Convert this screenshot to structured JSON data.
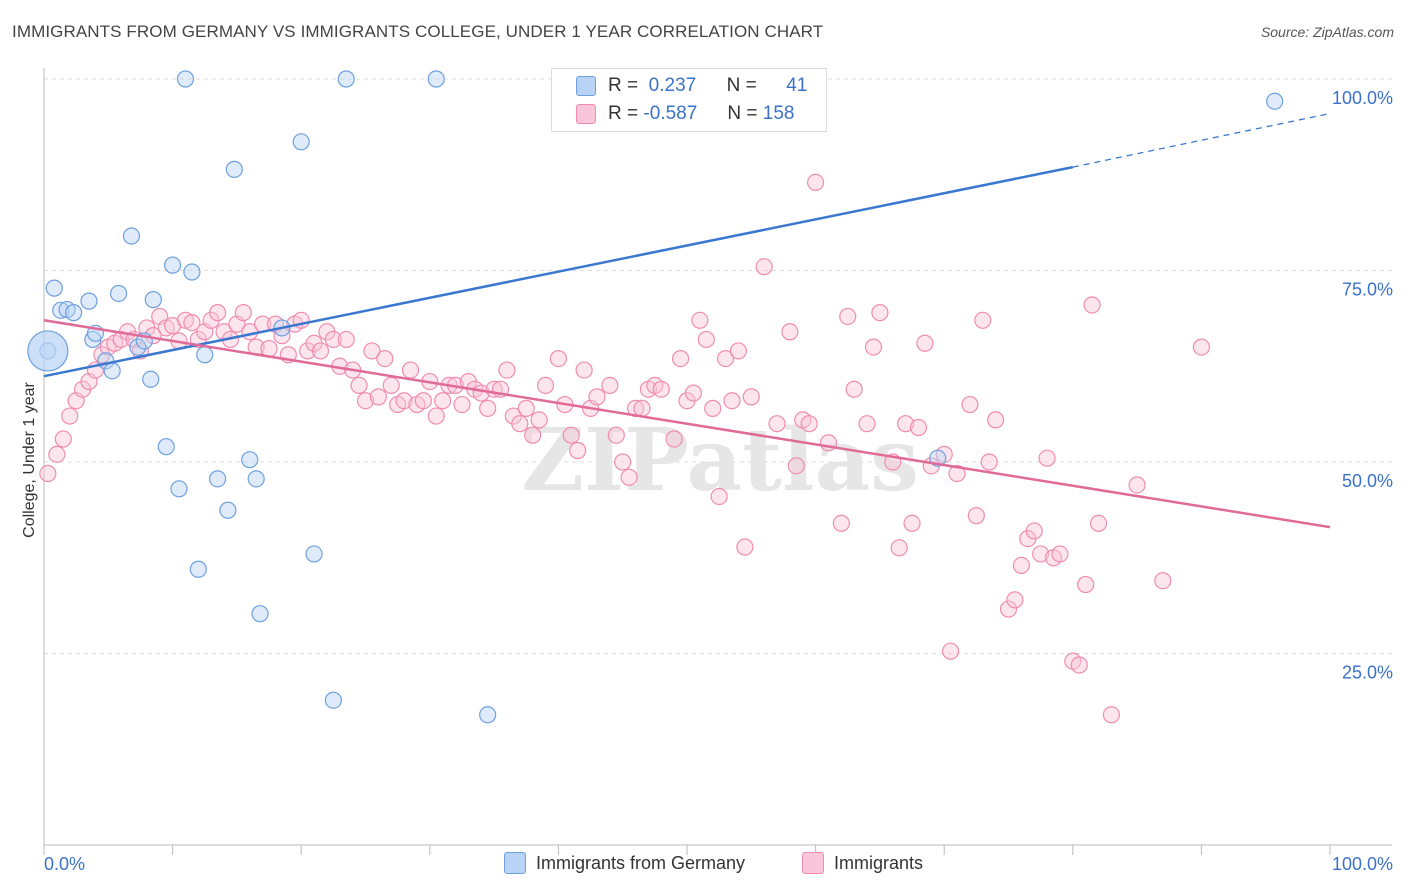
{
  "title": "IMMIGRANTS FROM GERMANY VS IMMIGRANTS COLLEGE, UNDER 1 YEAR CORRELATION CHART",
  "source": "Source: ZipAtlas.com",
  "watermark": "ZIPatlas",
  "legend": {
    "rows": [
      {
        "r_label": "R =",
        "r_value": "0.237",
        "n_label": "N =",
        "n_value": "41"
      },
      {
        "r_label": "R =",
        "r_value": "-0.587",
        "n_label": "N =",
        "n_value": "158"
      }
    ]
  },
  "chart_data": {
    "type": "scatter",
    "title": "IMMIGRANTS FROM GERMANY VS IMMIGRANTS COLLEGE, UNDER 1 YEAR CORRELATION CHART",
    "xlabel": "",
    "ylabel": "College, Under 1 year",
    "x_ticks": [
      "0.0%",
      "100.0%"
    ],
    "y_ticks": [
      "25.0%",
      "50.0%",
      "75.0%",
      "100.0%"
    ],
    "xlim": [
      0,
      100
    ],
    "ylim": [
      0,
      100
    ],
    "colors": {
      "blue": "#6ea0e0",
      "blue_fill": "#b9d3f5",
      "pink": "#f08cb0",
      "pink_fill": "#f8c6d8",
      "blue_line": "#3a78d0",
      "pink_line": "#e06a98",
      "tick_label": "#3a72c8"
    },
    "series": [
      {
        "name": "Immigrants from Germany",
        "r": 0.237,
        "n": 41,
        "trend": {
          "x0": 0,
          "y0": 61.2,
          "x1": 80,
          "y1": 88.5,
          "dash_x1": 100,
          "dash_y1": 95.5
        },
        "points": [
          [
            0.3,
            64.5
          ],
          [
            0.8,
            72.7
          ],
          [
            1.3,
            69.8
          ],
          [
            1.8,
            69.9
          ],
          [
            2.3,
            69.5
          ],
          [
            3.5,
            71
          ],
          [
            3.8,
            66
          ],
          [
            4,
            66.8
          ],
          [
            4.8,
            63.2
          ],
          [
            5.3,
            61.9
          ],
          [
            5.8,
            72
          ],
          [
            6.8,
            79.5
          ],
          [
            7.3,
            65
          ],
          [
            7.8,
            65.8
          ],
          [
            8.3,
            60.8
          ],
          [
            8.5,
            71.2
          ],
          [
            9.5,
            52
          ],
          [
            10,
            75.7
          ],
          [
            10.5,
            46.5
          ],
          [
            11,
            100
          ],
          [
            11.5,
            74.8
          ],
          [
            12,
            36
          ],
          [
            12.5,
            64
          ],
          [
            13.5,
            47.8
          ],
          [
            14.3,
            43.7
          ],
          [
            14.8,
            88.2
          ],
          [
            16,
            50.3
          ],
          [
            16.5,
            47.8
          ],
          [
            16.8,
            30.2
          ],
          [
            18.5,
            67.5
          ],
          [
            20,
            91.8
          ],
          [
            21,
            38
          ],
          [
            22.5,
            18.9
          ],
          [
            23.5,
            100
          ],
          [
            30.5,
            100
          ],
          [
            34.5,
            17
          ],
          [
            69.5,
            50.5
          ],
          [
            95.7,
            97.1
          ]
        ]
      },
      {
        "name": "Immigrants",
        "r": -0.587,
        "n": 158,
        "trend": {
          "x0": 0,
          "y0": 68.5,
          "x1": 100,
          "y1": 41.5
        },
        "points": [
          [
            0.3,
            48.5
          ],
          [
            1,
            51
          ],
          [
            1.5,
            53
          ],
          [
            2,
            56
          ],
          [
            2.5,
            58
          ],
          [
            3,
            59.5
          ],
          [
            3.5,
            60.5
          ],
          [
            4,
            62
          ],
          [
            4.5,
            64
          ],
          [
            5,
            65
          ],
          [
            5.5,
            65.5
          ],
          [
            6,
            66
          ],
          [
            6.5,
            67
          ],
          [
            7,
            66
          ],
          [
            7.5,
            64.5
          ],
          [
            8,
            67.5
          ],
          [
            8.5,
            66.5
          ],
          [
            9,
            69
          ],
          [
            9.5,
            67.5
          ],
          [
            10,
            67.8
          ],
          [
            10.5,
            65.8
          ],
          [
            11,
            68.5
          ],
          [
            11.5,
            68.2
          ],
          [
            12,
            66
          ],
          [
            12.5,
            67
          ],
          [
            13,
            68.5
          ],
          [
            13.5,
            69.5
          ],
          [
            14,
            67
          ],
          [
            14.5,
            66
          ],
          [
            15,
            68
          ],
          [
            15.5,
            69.5
          ],
          [
            16,
            67
          ],
          [
            16.5,
            65
          ],
          [
            17,
            68
          ],
          [
            17.5,
            64.8
          ],
          [
            18,
            68
          ],
          [
            18.5,
            66.5
          ],
          [
            19,
            64
          ],
          [
            19.5,
            68
          ],
          [
            20,
            68.5
          ],
          [
            20.5,
            64.5
          ],
          [
            21,
            65.5
          ],
          [
            21.5,
            64.5
          ],
          [
            22,
            67
          ],
          [
            22.5,
            66
          ],
          [
            23,
            62.5
          ],
          [
            23.5,
            66
          ],
          [
            24,
            62
          ],
          [
            24.5,
            60
          ],
          [
            25,
            58
          ],
          [
            25.5,
            64.5
          ],
          [
            26,
            58.5
          ],
          [
            26.5,
            63.5
          ],
          [
            27,
            60
          ],
          [
            27.5,
            57.5
          ],
          [
            28,
            58
          ],
          [
            28.5,
            62
          ],
          [
            29,
            57.5
          ],
          [
            29.5,
            58
          ],
          [
            30,
            60.5
          ],
          [
            30.5,
            56
          ],
          [
            31,
            58
          ],
          [
            31.5,
            60
          ],
          [
            32,
            60
          ],
          [
            32.5,
            57.5
          ],
          [
            33,
            60.5
          ],
          [
            33.5,
            59.5
          ],
          [
            34,
            59
          ],
          [
            34.5,
            57
          ],
          [
            35,
            59.5
          ],
          [
            35.5,
            59.5
          ],
          [
            36,
            62
          ],
          [
            36.5,
            56
          ],
          [
            37,
            55
          ],
          [
            37.5,
            57
          ],
          [
            38,
            53.5
          ],
          [
            38.5,
            55.5
          ],
          [
            39,
            60
          ],
          [
            40,
            63.5
          ],
          [
            40.5,
            57.5
          ],
          [
            41,
            53.5
          ],
          [
            41.5,
            51.5
          ],
          [
            42,
            62
          ],
          [
            42.5,
            57
          ],
          [
            43,
            58.5
          ],
          [
            44,
            60
          ],
          [
            44.5,
            53.5
          ],
          [
            45,
            50
          ],
          [
            45.5,
            48
          ],
          [
            46,
            57
          ],
          [
            46.5,
            57
          ],
          [
            47,
            59.5
          ],
          [
            47.5,
            60
          ],
          [
            48,
            59.5
          ],
          [
            49,
            53
          ],
          [
            49.5,
            63.5
          ],
          [
            50,
            58
          ],
          [
            50.5,
            59
          ],
          [
            51,
            68.5
          ],
          [
            51.5,
            66
          ],
          [
            52,
            57
          ],
          [
            52.5,
            45.5
          ],
          [
            53,
            63.5
          ],
          [
            53.5,
            58
          ],
          [
            54,
            64.5
          ],
          [
            54.5,
            38.9
          ],
          [
            55,
            58.5
          ],
          [
            56,
            75.5
          ],
          [
            57,
            55
          ],
          [
            58,
            67
          ],
          [
            58.5,
            49.5
          ],
          [
            59,
            55.5
          ],
          [
            59.5,
            55
          ],
          [
            60,
            86.5
          ],
          [
            61,
            52.5
          ],
          [
            62,
            42
          ],
          [
            62.5,
            69
          ],
          [
            63,
            59.5
          ],
          [
            64,
            55
          ],
          [
            64.5,
            65
          ],
          [
            65,
            69.5
          ],
          [
            66,
            50
          ],
          [
            66.5,
            38.8
          ],
          [
            67,
            55
          ],
          [
            67.5,
            42
          ],
          [
            68,
            54.5
          ],
          [
            68.5,
            65.5
          ],
          [
            69,
            49.5
          ],
          [
            70,
            51
          ],
          [
            70.5,
            25.3
          ],
          [
            71,
            48.5
          ],
          [
            72,
            57.5
          ],
          [
            72.5,
            43
          ],
          [
            73,
            68.5
          ],
          [
            73.5,
            50
          ],
          [
            74,
            55.5
          ],
          [
            75,
            30.8
          ],
          [
            75.5,
            32
          ],
          [
            76,
            36.5
          ],
          [
            76.5,
            40
          ],
          [
            77,
            41
          ],
          [
            77.5,
            38
          ],
          [
            78,
            50.5
          ],
          [
            78.5,
            37.5
          ],
          [
            79,
            38
          ],
          [
            80,
            24
          ],
          [
            80.5,
            23.5
          ],
          [
            81,
            34
          ],
          [
            81.5,
            70.5
          ],
          [
            82,
            42
          ],
          [
            83,
            17
          ],
          [
            85,
            47
          ],
          [
            87,
            34.5
          ],
          [
            90,
            65
          ]
        ]
      }
    ]
  },
  "bottom_legend": {
    "items": [
      "Immigrants from Germany",
      "Immigrants"
    ]
  }
}
